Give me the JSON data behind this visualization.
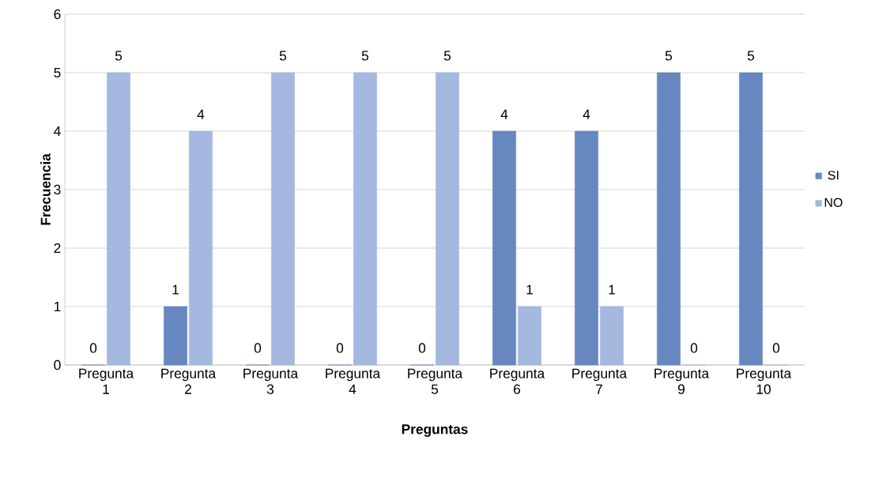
{
  "chart_data": {
    "type": "bar",
    "xlabel": "Preguntas",
    "ylabel": "Frecuencia",
    "categories": [
      "Pregunta 1",
      "Pregunta 2",
      "Pregunta 3",
      "Pregunta 4",
      "Pregunta 5",
      "Pregunta 6",
      "Pregunta 7",
      "Pregunta 9",
      "Pregunta 10"
    ],
    "series": [
      {
        "name": "SI",
        "color": "#6787c0",
        "values": [
          0,
          1,
          0,
          0,
          0,
          4,
          4,
          5,
          5
        ]
      },
      {
        "name": "NO",
        "color": "#a5b8e0",
        "values": [
          5,
          4,
          5,
          5,
          5,
          1,
          1,
          0,
          0
        ]
      }
    ],
    "ylim": [
      0,
      6
    ],
    "yticks": [
      0,
      1,
      2,
      3,
      4,
      5,
      6
    ],
    "grid": "y",
    "legend": "right",
    "data_labels": true
  }
}
